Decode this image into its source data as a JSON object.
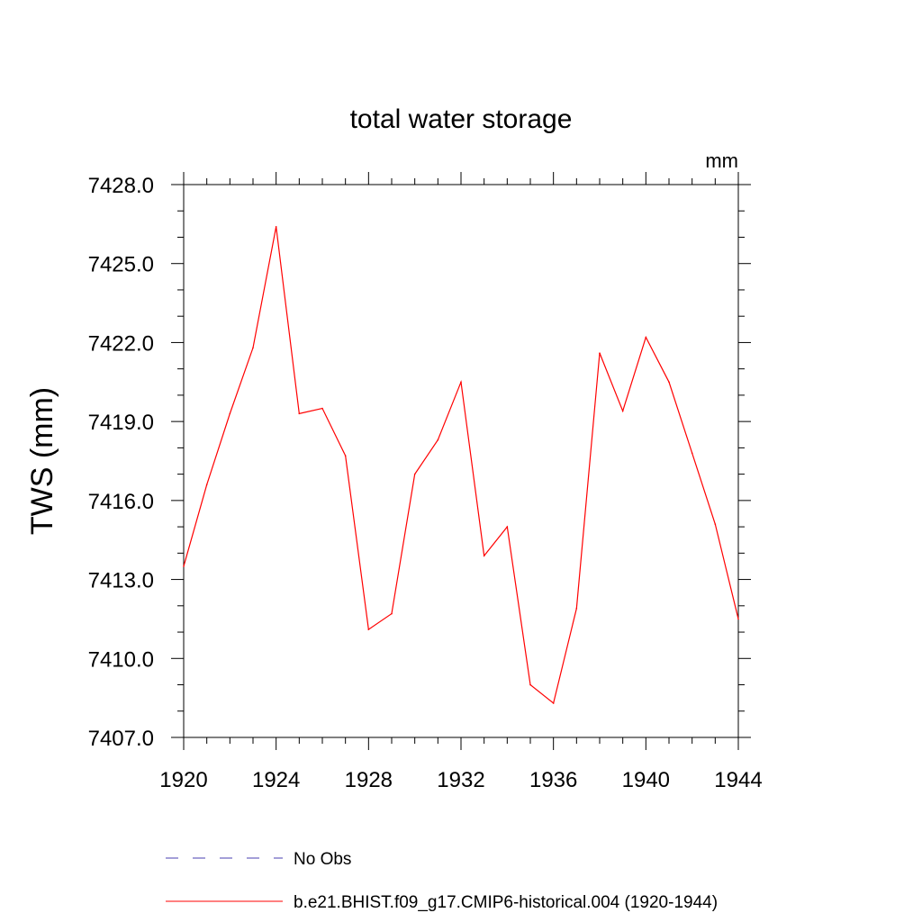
{
  "chart_data": {
    "type": "line",
    "title": "total water storage",
    "ylabel": "TWS  (mm)",
    "units": "mm",
    "xlim": [
      1920,
      1944
    ],
    "ylim": [
      7407.0,
      7428.0
    ],
    "x_ticks": [
      1920,
      1924,
      1928,
      1932,
      1936,
      1940,
      1944
    ],
    "y_ticks": [
      "7407.0",
      "7410.0",
      "7413.0",
      "7416.0",
      "7419.0",
      "7422.0",
      "7425.0",
      "7428.0"
    ],
    "x": [
      1920,
      1921,
      1922,
      1923,
      1924,
      1925,
      1926,
      1927,
      1928,
      1929,
      1930,
      1931,
      1932,
      1933,
      1934,
      1935,
      1936,
      1937,
      1938,
      1939,
      1940,
      1941,
      1942,
      1943,
      1944
    ],
    "series": [
      {
        "name": "b.e21.BHIST.f09_g17.CMIP6-historical.004 (1920-1944)",
        "color": "#ff0000",
        "values": [
          7413.5,
          7416.6,
          7419.3,
          7421.8,
          7426.4,
          7419.3,
          7419.5,
          7417.7,
          7411.1,
          7411.7,
          7417.0,
          7418.3,
          7420.5,
          7413.9,
          7415.0,
          7409.0,
          7408.3,
          7411.9,
          7421.6,
          7419.4,
          7422.2,
          7420.5,
          7417.8,
          7415.1,
          7411.5
        ]
      }
    ],
    "legend": [
      {
        "label": "No Obs",
        "color": "#4a3fb0",
        "style": "dashed"
      },
      {
        "label": "b.e21.BHIST.f09_g17.CMIP6-historical.004 (1920-1944)",
        "color": "#ff0000",
        "style": "solid"
      }
    ],
    "legend_position": "bottom",
    "grid": false
  }
}
